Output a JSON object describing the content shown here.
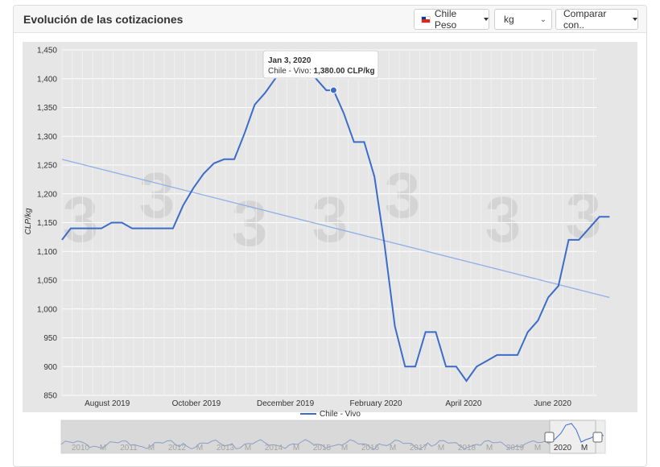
{
  "header": {
    "title": "Evolución de las cotizaciones",
    "currency_label": "Chile Peso",
    "unit_value": "kg",
    "compare_label": "Comparar con.."
  },
  "tooltip": {
    "date": "Jan 3, 2020",
    "series": "Chile - Vivo: ",
    "value": "1,380.00 CLP/kg"
  },
  "navigator": {
    "labels": [
      "2010",
      "M",
      "2011",
      "M",
      "2012",
      "M",
      "2013",
      "M",
      "2014",
      "M",
      "2015",
      "M",
      "2016",
      "M",
      "2017",
      "M",
      "2018",
      "M",
      "2019",
      "M",
      "2020",
      "M"
    ]
  },
  "colors": {
    "series": "#3d6cc8",
    "trend": "#8fb0e6",
    "plot_bg": "#e6e6e6"
  },
  "chart_data": {
    "type": "line",
    "title": "",
    "xlabel": "",
    "ylabel": "CLP/kg",
    "ylim": [
      850,
      1450
    ],
    "yticks": [
      850,
      900,
      950,
      1000,
      1050,
      1100,
      1150,
      1200,
      1250,
      1300,
      1350,
      1400,
      1450
    ],
    "ytick_labels": [
      "850",
      "900",
      "950",
      "1,000",
      "1,050",
      "1,100",
      "1,150",
      "1,200",
      "1,250",
      "1,300",
      "1,350",
      "1,400",
      "1,450"
    ],
    "xticks": [
      "August 2019",
      "October 2019",
      "December 2019",
      "February 2020",
      "April 2020",
      "June 2020"
    ],
    "xtick_dates": [
      "2019-08-01",
      "2019-10-01",
      "2019-12-01",
      "2020-02-01",
      "2020-04-01",
      "2020-06-01"
    ],
    "xlim": [
      "2019-07-01",
      "2020-07-01"
    ],
    "legend": "bottom-center",
    "grid": true,
    "series": [
      {
        "name": "Chile - Vivo",
        "points": [
          [
            "2019-07-01",
            1120
          ],
          [
            "2019-07-07",
            1140
          ],
          [
            "2019-07-14",
            1140
          ],
          [
            "2019-07-21",
            1140
          ],
          [
            "2019-07-28",
            1140
          ],
          [
            "2019-08-04",
            1150
          ],
          [
            "2019-08-11",
            1150
          ],
          [
            "2019-08-18",
            1140
          ],
          [
            "2019-08-25",
            1140
          ],
          [
            "2019-09-01",
            1140
          ],
          [
            "2019-09-08",
            1140
          ],
          [
            "2019-09-15",
            1140
          ],
          [
            "2019-09-22",
            1180
          ],
          [
            "2019-09-29",
            1210
          ],
          [
            "2019-10-06",
            1235
          ],
          [
            "2019-10-13",
            1253
          ],
          [
            "2019-10-20",
            1260
          ],
          [
            "2019-10-27",
            1260
          ],
          [
            "2019-11-03",
            1305
          ],
          [
            "2019-11-10",
            1355
          ],
          [
            "2019-11-17",
            1375
          ],
          [
            "2019-11-24",
            1400
          ],
          [
            "2019-12-01",
            1425
          ],
          [
            "2019-12-08",
            1420
          ],
          [
            "2019-12-15",
            1420
          ],
          [
            "2019-12-22",
            1400
          ],
          [
            "2019-12-29",
            1380
          ],
          [
            "2020-01-03",
            1380
          ],
          [
            "2020-01-10",
            1340
          ],
          [
            "2020-01-17",
            1290
          ],
          [
            "2020-01-24",
            1290
          ],
          [
            "2020-01-31",
            1230
          ],
          [
            "2020-02-07",
            1110
          ],
          [
            "2020-02-14",
            970
          ],
          [
            "2020-02-21",
            900
          ],
          [
            "2020-02-28",
            900
          ],
          [
            "2020-03-06",
            960
          ],
          [
            "2020-03-13",
            960
          ],
          [
            "2020-03-20",
            900
          ],
          [
            "2020-03-27",
            900
          ],
          [
            "2020-04-03",
            875
          ],
          [
            "2020-04-10",
            900
          ],
          [
            "2020-04-17",
            910
          ],
          [
            "2020-04-24",
            920
          ],
          [
            "2020-05-01",
            920
          ],
          [
            "2020-05-08",
            920
          ],
          [
            "2020-05-15",
            960
          ],
          [
            "2020-05-22",
            980
          ],
          [
            "2020-05-29",
            1020
          ],
          [
            "2020-06-05",
            1040
          ],
          [
            "2020-06-12",
            1120
          ],
          [
            "2020-06-19",
            1120
          ],
          [
            "2020-06-26",
            1140
          ],
          [
            "2020-07-03",
            1160
          ],
          [
            "2020-07-10",
            1160
          ]
        ]
      }
    ],
    "trendline": {
      "start": [
        "2019-07-01",
        1260
      ],
      "end": [
        "2020-07-10",
        1020
      ]
    }
  }
}
